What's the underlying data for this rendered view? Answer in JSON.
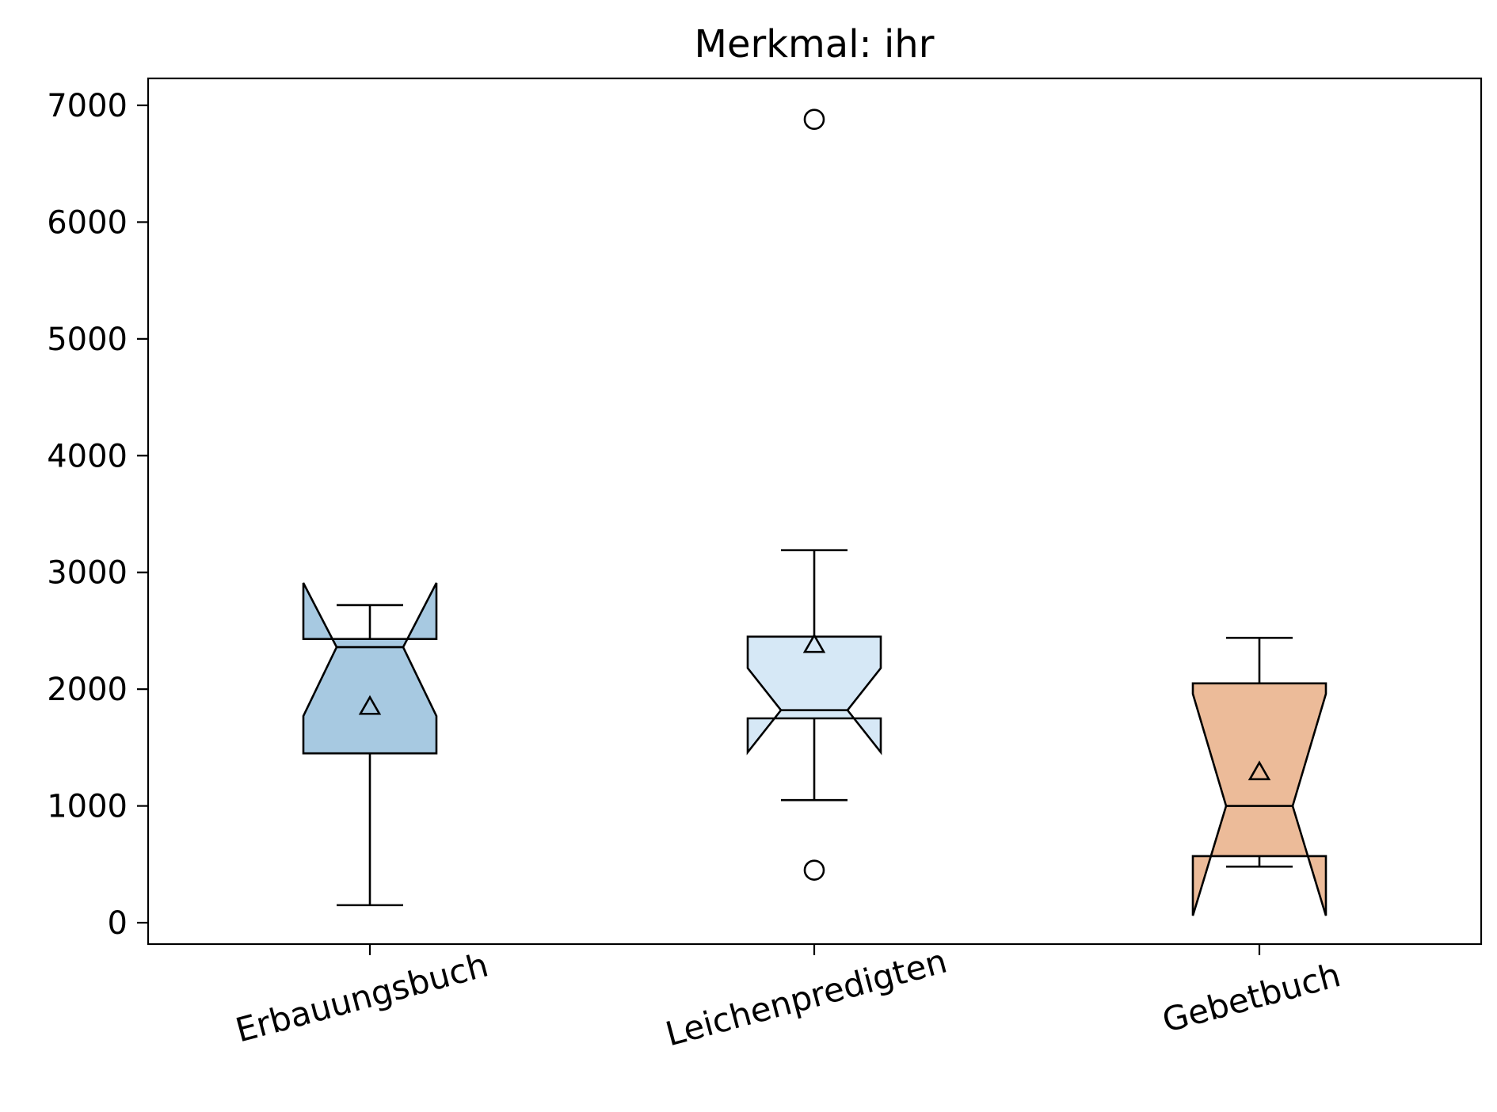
{
  "chart_data": {
    "type": "boxplot",
    "title": "Merkmal: ihr",
    "xlabel": "",
    "ylabel": "",
    "ylim": [
      -200,
      7250
    ],
    "yticks": [
      0,
      1000,
      2000,
      3000,
      4000,
      5000,
      6000,
      7000
    ],
    "yticklabels": [
      "0",
      "1000",
      "2000",
      "3000",
      "4000",
      "5000",
      "6000",
      "7000"
    ],
    "categories": [
      "Erbauungsbuch",
      "Leichenpredigten",
      "Gebetbuch"
    ],
    "notched": true,
    "showmeans": true,
    "grid": false,
    "boxes": [
      {
        "label": "Erbauungsbuch",
        "whisker_low": 150,
        "q1": 1450,
        "median": 2360,
        "q3": 2430,
        "whisker_high": 2720,
        "notch_low": 1770,
        "notch_high": 2910,
        "mean": 1850,
        "outliers": [],
        "color": "#a7c9e1"
      },
      {
        "label": "Leichenpredigten",
        "whisker_low": 1050,
        "q1": 1750,
        "median": 1820,
        "q3": 2450,
        "whisker_high": 3190,
        "notch_low": 1460,
        "notch_high": 2180,
        "mean": 2380,
        "outliers": [
          450,
          6880
        ],
        "color": "#d6e8f6"
      },
      {
        "label": "Gebetbuch",
        "whisker_low": 480,
        "q1": 570,
        "median": 1000,
        "q3": 2050,
        "whisker_high": 2440,
        "notch_low": 60,
        "notch_high": 1960,
        "mean": 1290,
        "outliers": [],
        "color": "#ecbb99"
      }
    ]
  }
}
